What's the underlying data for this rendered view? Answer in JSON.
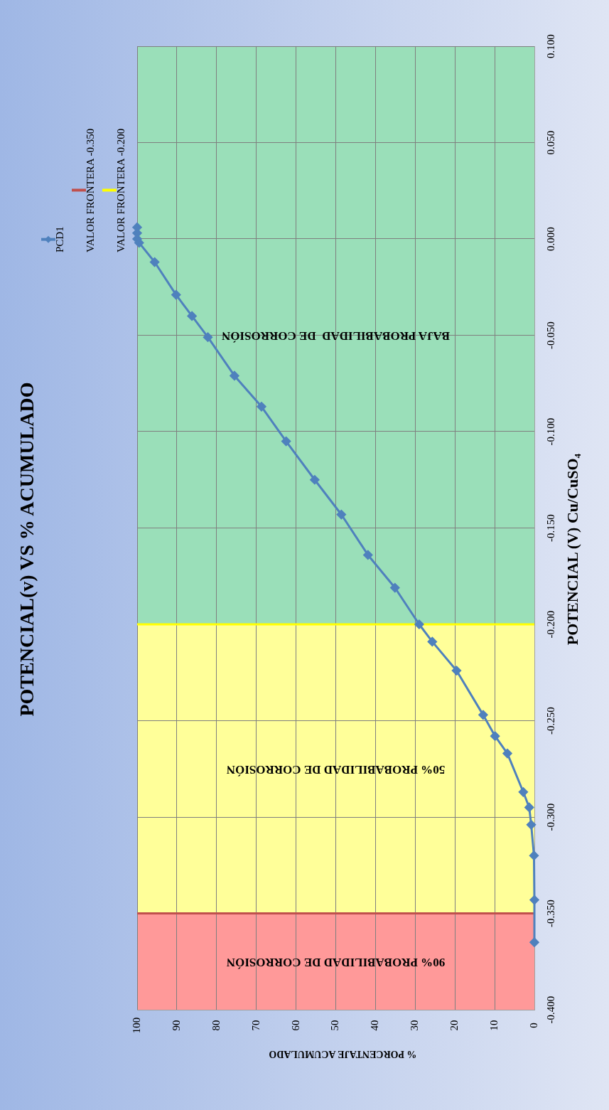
{
  "chart_data": {
    "type": "line",
    "title": "POTENCIAL(v) VS % ACUMULADO",
    "xlabel": "% PORCENTAJE ACUMULADO",
    "ylabel": "POTENCIAL (V) Cu/CuSO₄",
    "xlim": [
      100,
      0
    ],
    "xticks": [
      100,
      90,
      80,
      70,
      60,
      50,
      40,
      30,
      20,
      10,
      0
    ],
    "ylim": [
      -0.4,
      0.1
    ],
    "yticks": [
      {
        "value": -0.4,
        "label": "-0.400"
      },
      {
        "value": -0.35,
        "label": "-0.350"
      },
      {
        "value": -0.3,
        "label": "-0.300"
      },
      {
        "value": -0.25,
        "label": "-0.250"
      },
      {
        "value": -0.2,
        "label": "-0.200"
      },
      {
        "value": -0.15,
        "label": "-0.150"
      },
      {
        "value": -0.1,
        "label": "-0.100"
      },
      {
        "value": -0.05,
        "label": "-0.050"
      },
      {
        "value": 0,
        "label": "0.000"
      },
      {
        "value": 0.05,
        "label": "0.050"
      },
      {
        "value": 0.1,
        "label": "0.100"
      }
    ],
    "grid": true,
    "legend": "top left",
    "marker": "diamond",
    "line_style": "solid",
    "series": [
      {
        "name": "PCD1",
        "color": "#4f81bd",
        "values": [
          -0.365,
          -0.343,
          -0.32,
          -0.304,
          -0.295,
          -0.287,
          -0.267,
          -0.258,
          -0.247,
          -0.224,
          -0.209,
          -0.2,
          -0.181,
          -0.164,
          -0.143,
          -0.125,
          -0.105,
          -0.087,
          -0.071,
          -0.051,
          -0.04,
          -0.029,
          -0.012,
          -0.002,
          0.0,
          0.003,
          0.006
        ],
        "x": [
          0,
          0,
          0.1,
          0.8,
          1.3,
          2.8,
          6.8,
          9.9,
          12.9,
          19.6,
          25.7,
          29,
          35.1,
          41.9,
          48.6,
          55.3,
          62.5,
          68.7,
          75.5,
          82.2,
          86.2,
          90.2,
          95.6,
          99.5,
          100,
          100,
          100
        ]
      },
      {
        "name": "VALOR FRONTERA -0.350",
        "color": "#c0504d",
        "marker": "none",
        "x": [
          0,
          100
        ],
        "values": [
          -0.35,
          -0.35
        ]
      },
      {
        "name": "VALOR FRONTERA -0.200",
        "color": "#ffff00",
        "marker": "none",
        "x": [
          0,
          100
        ],
        "values": [
          -0.2,
          -0.2
        ]
      }
    ],
    "bands": [
      {
        "axis": "y",
        "from": -0.4,
        "to": -0.35,
        "label": "90% PROBABILIDAD DE CORROSIÓN",
        "color": "#ff9999"
      },
      {
        "axis": "y",
        "from": -0.35,
        "to": -0.2,
        "label": "50% PROBABILIDAD DE CORROSIÓN",
        "color": "#ffff99"
      },
      {
        "axis": "y",
        "from": -0.2,
        "to": 0.1,
        "label": "BAJA PROBABILIDAD  DE CORROSIÓN",
        "color": "#9adfb9"
      }
    ]
  }
}
